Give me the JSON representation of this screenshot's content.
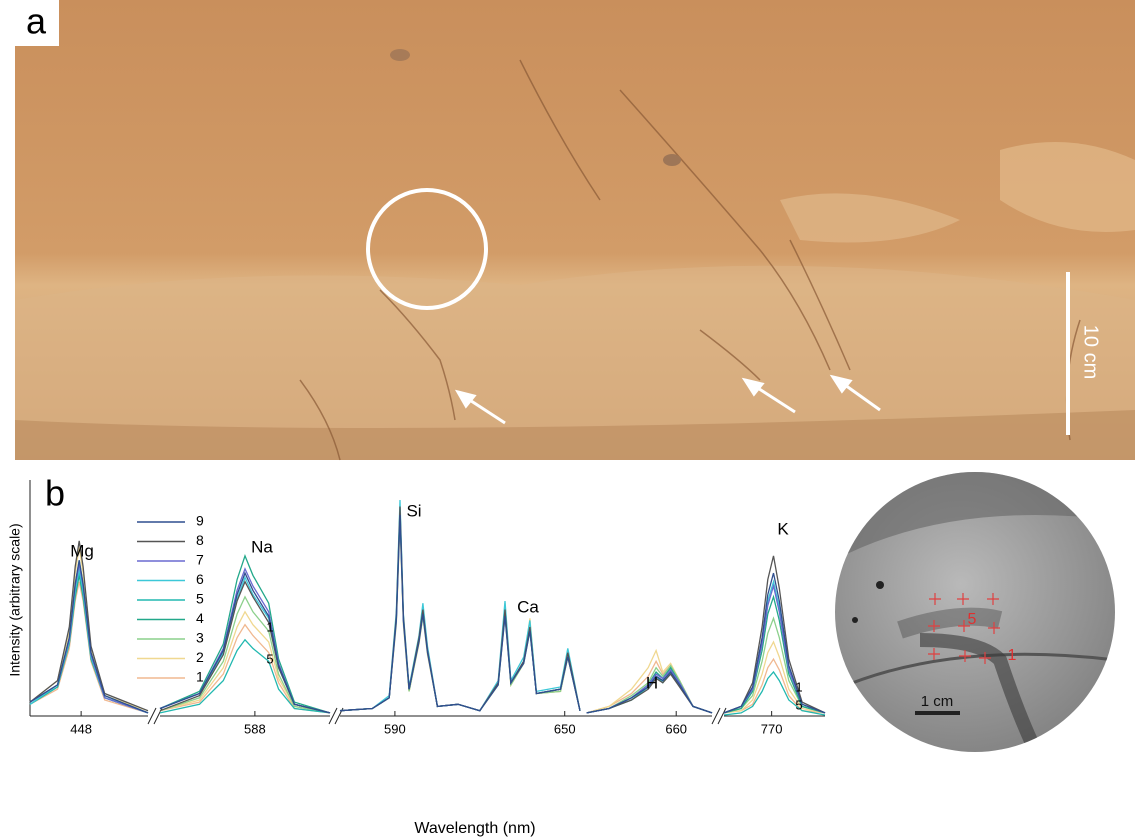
{
  "photo": {
    "label": "a",
    "scale_bar": "10 cm"
  },
  "inset": {
    "scale_bar": "1 cm",
    "points": [
      "5",
      "1"
    ]
  },
  "chart_data": {
    "type": "line",
    "label": "b",
    "y_label": "Intensity (arbitrary scale)",
    "x_label": "Wavelength (nm)",
    "ylim": [
      0,
      100
    ],
    "annotations": [
      "Mg",
      "Na",
      "Si",
      "Ca",
      "H",
      "K",
      "1",
      "5",
      "1",
      "5"
    ],
    "segments": [
      {
        "xlim": [
          446.7,
          449.7
        ],
        "xticks": [
          448
        ],
        "x": [
          446.7,
          447.4,
          447.7,
          447.85,
          447.95,
          448.05,
          448.25,
          448.6,
          449.7
        ]
      },
      {
        "xlim": [
          585.6,
          589.9
        ],
        "xticks": [
          588
        ],
        "x": [
          585.6,
          586.6,
          587.2,
          587.55,
          587.75,
          587.95,
          588.35,
          588.6,
          589.0,
          589.9
        ]
      },
      {
        "xlim": [
          570.6,
          655.4
        ],
        "xticks": [
          590,
          650
        ],
        "x": [
          570.6,
          582,
          588,
          590.5,
          591.8,
          593,
          595,
          598.5,
          599.9,
          601.5,
          605,
          612.3,
          620,
          626.5,
          628.9,
          631,
          635.5,
          637.7,
          640,
          648.5,
          651.1,
          655.4
        ]
      },
      {
        "xlim": [
          651.4,
          663.2
        ],
        "xticks": [
          660
        ],
        "x": [
          652,
          654,
          656,
          657.5,
          658.2,
          658.8,
          659.5,
          660.3,
          661.5,
          663.2
        ]
      },
      {
        "xlim": [
          768.75,
          771.4
        ],
        "xticks": [
          770
        ],
        "x": [
          768.75,
          769.2,
          769.5,
          769.75,
          769.9,
          770.05,
          770.2,
          770.45,
          770.8,
          771.4
        ]
      }
    ],
    "series": [
      {
        "name": "9",
        "color": "#2f4f8f",
        "values": [
          [
            6,
            14,
            36,
            61,
            72,
            61,
            29,
            9,
            1
          ],
          [
            3,
            10,
            30,
            56,
            66,
            58,
            46,
            23,
            5,
            1
          ],
          [
            2,
            3,
            8,
            44,
            93,
            44,
            12,
            34,
            47,
            29,
            4,
            5,
            2,
            14,
            46,
            15,
            24,
            39,
            10,
            12,
            27,
            2
          ],
          [
            1,
            3,
            8,
            13,
            18,
            16,
            20,
            14,
            4,
            1
          ],
          [
            1,
            4,
            13,
            36,
            56,
            66,
            53,
            23,
            5,
            1
          ]
        ]
      },
      {
        "name": "8",
        "color": "#555555",
        "values": [
          [
            6,
            16,
            41,
            69,
            81,
            69,
            32,
            10,
            2
          ],
          [
            2,
            9,
            28,
            53,
            62,
            55,
            43,
            22,
            5,
            1
          ],
          [
            2,
            3,
            8,
            46,
            97,
            46,
            12,
            36,
            49,
            30,
            4,
            5,
            2,
            15,
            49,
            15,
            25,
            41,
            10,
            12,
            29,
            2
          ],
          [
            1,
            3,
            7,
            12,
            17,
            15,
            19,
            13,
            4,
            1
          ],
          [
            1,
            4,
            15,
            41,
            63,
            74,
            59,
            26,
            6,
            1
          ]
        ]
      },
      {
        "name": "7",
        "color": "#6a6ad0",
        "values": [
          [
            6,
            14,
            35,
            60,
            70,
            60,
            28,
            8,
            1
          ],
          [
            3,
            10,
            31,
            58,
            68,
            60,
            48,
            24,
            5,
            1
          ],
          [
            2,
            3,
            8,
            44,
            94,
            44,
            12,
            35,
            48,
            30,
            4,
            5,
            2,
            15,
            47,
            15,
            25,
            40,
            10,
            12,
            28,
            2
          ],
          [
            1,
            3,
            8,
            14,
            19,
            17,
            21,
            15,
            4,
            1
          ],
          [
            1,
            4,
            12,
            33,
            51,
            60,
            48,
            21,
            5,
            1
          ]
        ]
      },
      {
        "name": "6",
        "color": "#3cc8d8",
        "values": [
          [
            5,
            14,
            34,
            58,
            68,
            58,
            27,
            8,
            1
          ],
          [
            3,
            10,
            29,
            54,
            64,
            56,
            45,
            22,
            5,
            1
          ],
          [
            2,
            3,
            9,
            48,
            100,
            47,
            13,
            37,
            52,
            32,
            4,
            5,
            2,
            16,
            53,
            16,
            27,
            44,
            11,
            13,
            31,
            2
          ],
          [
            1,
            3,
            8,
            13,
            18,
            16,
            20,
            14,
            4,
            1
          ],
          [
            1,
            4,
            12,
            34,
            53,
            62,
            50,
            22,
            5,
            1
          ]
        ]
      },
      {
        "name": "5",
        "color": "#22b8b0",
        "values": [
          [
            5,
            13,
            34,
            57,
            67,
            57,
            27,
            8,
            1
          ],
          [
            1,
            5,
            16,
            30,
            35,
            31,
            25,
            12,
            3,
            1
          ],
          [
            2,
            3,
            8,
            45,
            96,
            45,
            12,
            35,
            48,
            30,
            4,
            5,
            2,
            15,
            48,
            15,
            25,
            40,
            10,
            12,
            28,
            2
          ],
          [
            1,
            3,
            7,
            13,
            18,
            15,
            20,
            14,
            4,
            1
          ],
          [
            0,
            1,
            4,
            11,
            17,
            20,
            16,
            7,
            2,
            0
          ]
        ]
      },
      {
        "name": "4",
        "color": "#22a88a",
        "values": [
          [
            5,
            13,
            33,
            55,
            65,
            55,
            26,
            8,
            1
          ],
          [
            3,
            11,
            33,
            63,
            74,
            65,
            52,
            26,
            6,
            1
          ],
          [
            2,
            3,
            8,
            45,
            95,
            45,
            12,
            35,
            48,
            30,
            4,
            5,
            2,
            15,
            48,
            15,
            25,
            40,
            10,
            12,
            28,
            2
          ],
          [
            1,
            3,
            8,
            14,
            20,
            17,
            22,
            15,
            4,
            1
          ],
          [
            1,
            3,
            11,
            30,
            47,
            55,
            44,
            19,
            4,
            1
          ]
        ]
      },
      {
        "name": "3",
        "color": "#8cd08c",
        "values": [
          [
            6,
            14,
            36,
            61,
            72,
            61,
            29,
            9,
            1
          ],
          [
            2,
            8,
            25,
            47,
            55,
            48,
            39,
            19,
            4,
            1
          ],
          [
            2,
            3,
            8,
            43,
            92,
            43,
            11,
            34,
            46,
            29,
            4,
            5,
            2,
            14,
            46,
            14,
            24,
            39,
            10,
            11,
            27,
            2
          ],
          [
            1,
            3,
            9,
            15,
            22,
            18,
            23,
            16,
            4,
            1
          ],
          [
            1,
            3,
            9,
            25,
            38,
            45,
            36,
            16,
            4,
            1
          ]
        ]
      },
      {
        "name": "2",
        "color": "#f0d890",
        "values": [
          [
            6,
            16,
            39,
            66,
            78,
            66,
            31,
            9,
            2
          ],
          [
            2,
            7,
            22,
            41,
            48,
            42,
            34,
            17,
            4,
            1
          ],
          [
            2,
            3,
            8,
            42,
            90,
            42,
            11,
            33,
            46,
            28,
            4,
            5,
            2,
            14,
            52,
            14,
            24,
            45,
            10,
            11,
            27,
            2
          ],
          [
            1,
            4,
            12,
            22,
            30,
            20,
            24,
            16,
            4,
            1
          ],
          [
            1,
            2,
            7,
            19,
            29,
            34,
            27,
            12,
            3,
            1
          ]
        ]
      },
      {
        "name": "1",
        "color": "#f0b890",
        "values": [
          [
            5,
            12,
            31,
            53,
            62,
            53,
            25,
            7,
            1
          ],
          [
            2,
            6,
            19,
            36,
            42,
            37,
            29,
            15,
            3,
            1
          ],
          [
            2,
            3,
            8,
            43,
            91,
            43,
            11,
            34,
            46,
            29,
            4,
            5,
            2,
            14,
            47,
            14,
            24,
            40,
            10,
            11,
            27,
            2
          ],
          [
            1,
            4,
            10,
            18,
            25,
            19,
            23,
            16,
            4,
            1
          ],
          [
            1,
            2,
            5,
            14,
            22,
            26,
            21,
            9,
            2,
            1
          ]
        ]
      }
    ]
  }
}
